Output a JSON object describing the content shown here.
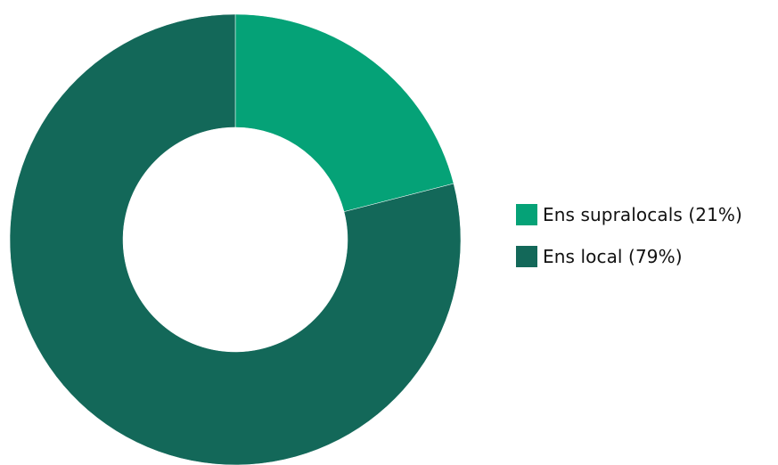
{
  "chart_data": {
    "type": "pie",
    "variant": "donut",
    "title": "",
    "series": [
      {
        "name": "Ens supralocals",
        "value": 21,
        "color": "#05a277"
      },
      {
        "name": "Ens local",
        "value": 79,
        "color": "#136859"
      }
    ],
    "legend": {
      "position": "right",
      "items": [
        {
          "label": "Ens supralocals (21%)",
          "color": "#05a277"
        },
        {
          "label": "Ens local (79%)",
          "color": "#136859"
        }
      ]
    }
  }
}
